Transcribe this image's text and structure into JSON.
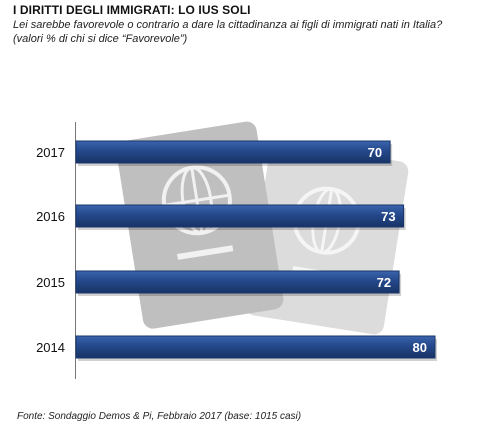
{
  "title": "I DIRITTI DEGLI IMMIGRATI:  LO IUS SOLI",
  "subtitle_line1": "Lei sarebbe favorevole o contrario a dare la cittadinanza ai figli di immigrati nati in Italia?",
  "subtitle_line2": "(valori % di chi si dice “Favorevole”)",
  "source": "Fonte: Sondaggio Demos & Pi, Febbraio 2017 (base: 1015 casi)",
  "chart_data": {
    "type": "bar",
    "orientation": "horizontal",
    "categories": [
      "2017",
      "2016",
      "2015",
      "2014"
    ],
    "values": [
      70,
      73,
      72,
      80
    ],
    "xlim": [
      0,
      100
    ],
    "grid": false,
    "colors": {
      "bar": "#24488a",
      "bar_edge": "#1a3569",
      "label": "#ffffff"
    }
  },
  "background_illustration": "passport-globe-icons"
}
